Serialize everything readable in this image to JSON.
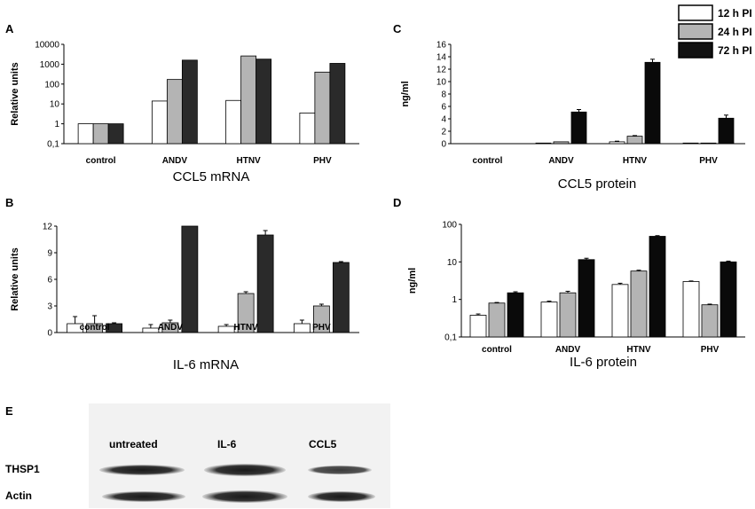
{
  "panels": {
    "A": "A",
    "B": "B",
    "C": "C",
    "D": "D",
    "E": "E"
  },
  "legend": {
    "entries": [
      {
        "label": "12 h PI",
        "color": "#ffffff"
      },
      {
        "label": "24 h PI",
        "color": "#b4b4b4"
      },
      {
        "label": "72 h PI",
        "color": "#111111"
      }
    ]
  },
  "colors": {
    "white": "#ffffff",
    "gray": "#b4b4b4",
    "dark": "#2a2a2a",
    "black": "#0a0a0a"
  },
  "chart_data": [
    {
      "id": "A",
      "type": "bar",
      "scale": "log",
      "title": "CCL5 mRNA",
      "ylabel": "Relative units",
      "categories": [
        "control",
        "ANDV",
        "HTNV",
        "PHV"
      ],
      "yticks": [
        "0,1",
        "1",
        "10",
        "100",
        "1000",
        "10000"
      ],
      "ylim": [
        0.1,
        10000
      ],
      "series": [
        {
          "name": "12 h PI",
          "values": [
            1,
            14,
            15,
            3.5
          ]
        },
        {
          "name": "24 h PI",
          "values": [
            1,
            170,
            2600,
            400
          ]
        },
        {
          "name": "72 h PI",
          "values": [
            1,
            1600,
            1800,
            1100
          ]
        }
      ]
    },
    {
      "id": "B",
      "type": "bar",
      "scale": "linear",
      "title": "IL-6 mRNA",
      "ylabel": "Relative units",
      "categories": [
        "control",
        "ANDV",
        "HTNV",
        "PHV"
      ],
      "yticks": [
        "0",
        "3",
        "6",
        "9",
        "12"
      ],
      "ylim": [
        0,
        12
      ],
      "series": [
        {
          "name": "12 h PI",
          "values": [
            1,
            0.5,
            0.7,
            1.0
          ],
          "errors": [
            0.8,
            0.4,
            0.2,
            0.4
          ]
        },
        {
          "name": "24 h PI",
          "values": [
            1,
            1.1,
            4.4,
            3.0
          ],
          "errors": [
            0.9,
            0.3,
            0.2,
            0.2
          ]
        },
        {
          "name": "72 h PI",
          "values": [
            1,
            12,
            11,
            7.9
          ],
          "errors": [
            0.1,
            0,
            0.5,
            0.1
          ]
        }
      ]
    },
    {
      "id": "C",
      "type": "bar",
      "scale": "linear",
      "title": "CCL5 protein",
      "ylabel": "ng/ml",
      "categories": [
        "control",
        "ANDV",
        "HTNV",
        "PHV"
      ],
      "yticks": [
        "0",
        "2",
        "4",
        "6",
        "8",
        "10",
        "12",
        "14",
        "16"
      ],
      "ylim": [
        0,
        16
      ],
      "series": [
        {
          "name": "12 h PI",
          "values": [
            0,
            0.1,
            0.3,
            0.1
          ],
          "errors": [
            0,
            0,
            0.1,
            0
          ]
        },
        {
          "name": "24 h PI",
          "values": [
            0,
            0.3,
            1.2,
            0.1
          ],
          "errors": [
            0,
            0,
            0.1,
            0
          ]
        },
        {
          "name": "72 h PI",
          "values": [
            0,
            5.1,
            13.1,
            4.1
          ],
          "errors": [
            0,
            0.4,
            0.5,
            0.5
          ]
        }
      ]
    },
    {
      "id": "D",
      "type": "bar",
      "scale": "log",
      "title": "IL-6 protein",
      "ylabel": "ng/ml",
      "categories": [
        "control",
        "ANDV",
        "HTNV",
        "PHV"
      ],
      "yticks": [
        "0,1",
        "1",
        "10",
        "100"
      ],
      "ylim": [
        0.1,
        100
      ],
      "series": [
        {
          "name": "12 h PI",
          "values": [
            0.38,
            0.85,
            2.5,
            3.0
          ],
          "errors": [
            0.03,
            0.05,
            0.2,
            0.1
          ]
        },
        {
          "name": "24 h PI",
          "values": [
            0.8,
            1.5,
            5.7,
            0.72
          ],
          "errors": [
            0.03,
            0.15,
            0.3,
            0.03
          ]
        },
        {
          "name": "72 h PI",
          "values": [
            1.5,
            11.5,
            48,
            10
          ],
          "errors": [
            0.1,
            1.0,
            2,
            0.5
          ]
        }
      ]
    }
  ],
  "blot": {
    "columns": [
      "untreated",
      "IL-6",
      "CCL5"
    ],
    "rows": [
      "THSP1",
      "Actin"
    ]
  }
}
